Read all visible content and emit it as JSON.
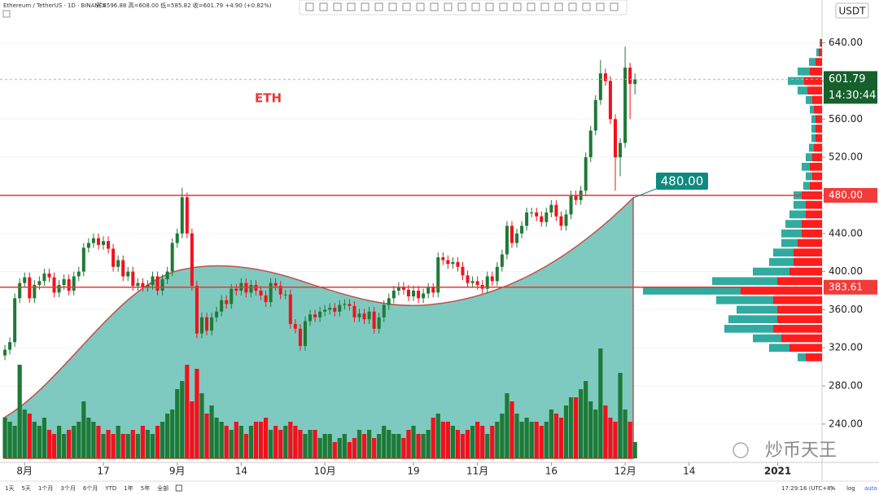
{
  "chart_data": {
    "type": "candlestick",
    "title": "Ethereum / TetherUS · 1D · BINANCE",
    "ohlc_label": "开=596.88 高=608.00 低=585.82 收=601.79 +4.90 (+0.82%)",
    "annotation": "ETH",
    "y_label": "USDT",
    "up_color": "#1e7a36",
    "down_color": "#f4101b",
    "profile_up_color": "#26a69a",
    "profile_down_color": "#ff1010",
    "ylim": [
      204,
      685
    ],
    "yticks": [
      {
        "value": 240,
        "label": "240.00"
      },
      {
        "value": 280,
        "label": "280.00"
      },
      {
        "value": 320,
        "label": "320.00"
      },
      {
        "value": 360,
        "label": "360.00"
      },
      {
        "value": 400,
        "label": "400.00"
      },
      {
        "value": 440,
        "label": "440.00"
      },
      {
        "value": 480,
        "label": "480.00"
      },
      {
        "value": 520,
        "label": "520.00"
      },
      {
        "value": 560,
        "label": "560.00"
      },
      {
        "value": 600,
        "label": "600.00"
      },
      {
        "value": 640,
        "label": "640.00"
      }
    ],
    "xlim": [
      -1,
      166
    ],
    "xticks": [
      {
        "value": 4,
        "label": "8月"
      },
      {
        "value": 20,
        "label": "17"
      },
      {
        "value": 35,
        "label": "9月"
      },
      {
        "value": 48,
        "label": "14"
      },
      {
        "value": 65,
        "label": "10月"
      },
      {
        "value": 83,
        "label": "19"
      },
      {
        "value": 96,
        "label": "11月"
      },
      {
        "value": 111,
        "label": "16"
      },
      {
        "value": 126,
        "label": "12月"
      },
      {
        "value": 139,
        "label": "14"
      },
      {
        "value": 157,
        "label": "2021"
      }
    ],
    "hlines": [
      {
        "value": 480,
        "label": "480.00"
      },
      383.61
    ],
    "last_price": 601.79,
    "countdown": "14:30:44",
    "candles": [
      [
        312,
        323,
        307,
        318
      ],
      [
        318,
        331,
        313,
        326
      ],
      [
        326,
        377,
        321,
        372
      ],
      [
        372,
        393,
        367,
        388
      ],
      [
        388,
        399,
        383,
        394
      ],
      [
        394,
        399,
        367,
        372
      ],
      [
        372,
        391,
        367,
        386
      ],
      [
        386,
        395,
        381,
        390
      ],
      [
        390,
        403,
        385,
        398
      ],
      [
        398,
        403,
        389,
        394
      ],
      [
        394,
        399,
        373,
        378
      ],
      [
        378,
        391,
        373,
        386
      ],
      [
        386,
        397,
        381,
        392
      ],
      [
        392,
        397,
        375,
        380
      ],
      [
        380,
        400,
        375,
        395
      ],
      [
        395,
        405,
        390,
        400
      ],
      [
        400,
        430,
        395,
        425
      ],
      [
        425,
        435,
        420,
        430
      ],
      [
        430,
        440,
        425,
        435
      ],
      [
        435,
        440,
        423,
        428
      ],
      [
        428,
        437,
        423,
        432
      ],
      [
        432,
        437,
        419,
        424
      ],
      [
        424,
        429,
        400,
        405
      ],
      [
        405,
        417,
        400,
        412
      ],
      [
        412,
        417,
        390,
        395
      ],
      [
        395,
        405,
        390,
        400
      ],
      [
        400,
        405,
        380,
        385
      ],
      [
        385,
        393,
        380,
        388
      ],
      [
        388,
        393,
        379,
        384
      ],
      [
        384,
        391,
        379,
        386
      ],
      [
        386,
        400,
        381,
        395
      ],
      [
        395,
        400,
        375,
        380
      ],
      [
        380,
        397,
        375,
        392
      ],
      [
        392,
        405,
        387,
        400
      ],
      [
        400,
        435,
        395,
        430
      ],
      [
        430,
        445,
        425,
        440
      ],
      [
        440,
        488,
        435,
        478
      ],
      [
        478,
        483,
        435,
        440
      ],
      [
        440,
        445,
        380,
        385
      ],
      [
        385,
        390,
        330,
        335
      ],
      [
        335,
        357,
        330,
        352
      ],
      [
        352,
        357,
        333,
        338
      ],
      [
        338,
        357,
        333,
        352
      ],
      [
        352,
        363,
        347,
        358
      ],
      [
        358,
        375,
        353,
        370
      ],
      [
        370,
        375,
        361,
        366
      ],
      [
        366,
        387,
        361,
        382
      ],
      [
        382,
        387,
        375,
        380
      ],
      [
        380,
        393,
        375,
        388
      ],
      [
        388,
        393,
        373,
        378
      ],
      [
        378,
        391,
        373,
        386
      ],
      [
        386,
        391,
        375,
        380
      ],
      [
        380,
        385,
        370,
        375
      ],
      [
        375,
        380,
        363,
        368
      ],
      [
        368,
        393,
        363,
        388
      ],
      [
        388,
        393,
        380,
        385
      ],
      [
        385,
        390,
        371,
        376
      ],
      [
        376,
        381,
        371,
        376
      ],
      [
        376,
        381,
        340,
        345
      ],
      [
        345,
        350,
        335,
        340
      ],
      [
        340,
        345,
        317,
        322
      ],
      [
        322,
        353,
        317,
        348
      ],
      [
        348,
        360,
        343,
        355
      ],
      [
        355,
        360,
        347,
        352
      ],
      [
        352,
        363,
        347,
        358
      ],
      [
        358,
        365,
        353,
        360
      ],
      [
        360,
        367,
        355,
        362
      ],
      [
        362,
        367,
        353,
        358
      ],
      [
        358,
        370,
        353,
        365
      ],
      [
        365,
        371,
        360,
        366
      ],
      [
        366,
        371,
        359,
        364
      ],
      [
        364,
        369,
        347,
        352
      ],
      [
        352,
        361,
        347,
        356
      ],
      [
        356,
        361,
        345,
        350
      ],
      [
        350,
        363,
        345,
        358
      ],
      [
        358,
        363,
        335,
        340
      ],
      [
        340,
        357,
        335,
        352
      ],
      [
        352,
        370,
        347,
        365
      ],
      [
        365,
        377,
        360,
        372
      ],
      [
        372,
        385,
        367,
        380
      ],
      [
        380,
        389,
        375,
        384
      ],
      [
        384,
        389,
        376,
        381
      ],
      [
        381,
        386,
        369,
        374
      ],
      [
        374,
        385,
        369,
        380
      ],
      [
        380,
        385,
        367,
        372
      ],
      [
        372,
        382,
        367,
        377
      ],
      [
        377,
        388,
        372,
        383
      ],
      [
        383,
        388,
        373,
        378
      ],
      [
        378,
        420,
        373,
        415
      ],
      [
        415,
        420,
        407,
        412
      ],
      [
        412,
        417,
        403,
        408
      ],
      [
        408,
        415,
        403,
        410
      ],
      [
        410,
        415,
        400,
        405
      ],
      [
        405,
        410,
        391,
        396
      ],
      [
        396,
        401,
        383,
        388
      ],
      [
        388,
        395,
        383,
        390
      ],
      [
        390,
        395,
        381,
        386
      ],
      [
        386,
        391,
        377,
        382
      ],
      [
        382,
        400,
        377,
        395
      ],
      [
        395,
        400,
        385,
        390
      ],
      [
        390,
        410,
        385,
        405
      ],
      [
        405,
        423,
        400,
        418
      ],
      [
        418,
        453,
        413,
        448
      ],
      [
        448,
        453,
        425,
        430
      ],
      [
        430,
        445,
        425,
        440
      ],
      [
        440,
        453,
        435,
        448
      ],
      [
        448,
        467,
        443,
        462
      ],
      [
        462,
        467,
        457,
        462
      ],
      [
        462,
        467,
        453,
        458
      ],
      [
        458,
        463,
        447,
        452
      ],
      [
        452,
        467,
        447,
        462
      ],
      [
        462,
        475,
        457,
        470
      ],
      [
        470,
        475,
        453,
        458
      ],
      [
        458,
        463,
        443,
        448
      ],
      [
        448,
        465,
        443,
        460
      ],
      [
        460,
        485,
        455,
        480
      ],
      [
        480,
        485,
        470,
        475
      ],
      [
        475,
        490,
        470,
        485
      ],
      [
        485,
        525,
        480,
        520
      ],
      [
        520,
        553,
        515,
        548
      ],
      [
        548,
        585,
        543,
        580
      ],
      [
        580,
        622,
        575,
        608
      ],
      [
        608,
        613,
        595,
        600
      ],
      [
        600,
        605,
        555,
        560
      ],
      [
        560,
        565,
        485,
        520
      ],
      [
        520,
        540,
        500,
        535
      ],
      [
        535,
        636,
        530,
        614
      ],
      [
        614,
        619,
        560,
        597
      ],
      [
        596.88,
        608,
        585.82,
        601.79
      ]
    ],
    "volumes": [
      50,
      45,
      40,
      115,
      60,
      55,
      45,
      40,
      50,
      35,
      30,
      40,
      30,
      35,
      40,
      45,
      70,
      50,
      45,
      40,
      30,
      35,
      30,
      40,
      30,
      30,
      35,
      30,
      40,
      35,
      30,
      40,
      45,
      55,
      60,
      85,
      95,
      115,
      70,
      110,
      80,
      55,
      65,
      50,
      45,
      40,
      35,
      45,
      40,
      30,
      40,
      45,
      45,
      50,
      35,
      40,
      35,
      40,
      45,
      40,
      35,
      30,
      35,
      35,
      25,
      30,
      30,
      20,
      25,
      30,
      20,
      25,
      35,
      30,
      35,
      25,
      30,
      40,
      35,
      30,
      30,
      25,
      35,
      40,
      30,
      30,
      35,
      50,
      55,
      45,
      45,
      40,
      35,
      30,
      35,
      40,
      45,
      40,
      30,
      40,
      45,
      55,
      80,
      70,
      55,
      45,
      50,
      45,
      45,
      40,
      45,
      60,
      55,
      50,
      65,
      75,
      75,
      85,
      95,
      70,
      60,
      135,
      65,
      50,
      45,
      105,
      60,
      45,
      20
    ],
    "volume_profile": {
      "prices": [
        310,
        320,
        330,
        340,
        350,
        360,
        370,
        380,
        390,
        400,
        410,
        420,
        430,
        440,
        450,
        460,
        470,
        480,
        490,
        500,
        510,
        520,
        530,
        540,
        550,
        560,
        570,
        580,
        590,
        600,
        610,
        620,
        630,
        640
      ],
      "up": [
        10,
        25,
        35,
        60,
        60,
        50,
        70,
        120,
        80,
        45,
        30,
        25,
        20,
        25,
        20,
        20,
        15,
        10,
        8,
        8,
        10,
        8,
        6,
        5,
        5,
        5,
        5,
        8,
        12,
        20,
        15,
        8,
        3,
        1
      ],
      "down": [
        20,
        40,
        50,
        60,
        55,
        55,
        60,
        100,
        55,
        40,
        35,
        35,
        30,
        25,
        25,
        20,
        20,
        25,
        15,
        12,
        15,
        12,
        10,
        8,
        8,
        8,
        10,
        12,
        18,
        22,
        15,
        8,
        4,
        2
      ]
    }
  },
  "toolbar": {
    "ranges": [
      "1天",
      "5天",
      "1个月",
      "3个月",
      "6个月",
      "YTD",
      "1年",
      "5年",
      "全部"
    ],
    "time": "17:29:16 (UTC+8)",
    "options": [
      "%",
      "log",
      "auto"
    ]
  },
  "watermark": "炒币天王"
}
